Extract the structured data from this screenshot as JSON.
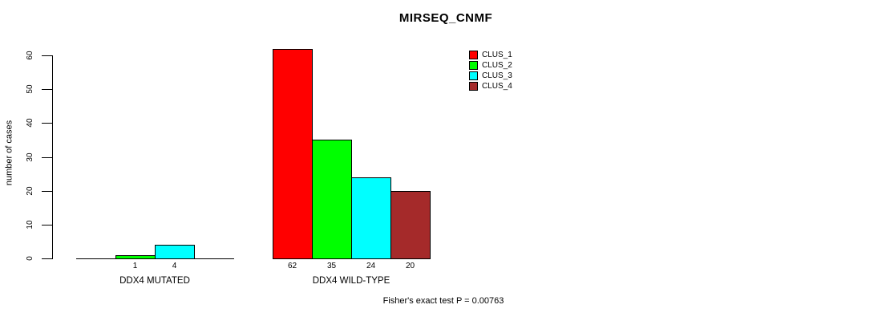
{
  "chart_data": {
    "type": "bar",
    "title": "MIRSEQ_CNMF",
    "ylabel": "number of cases",
    "xlabel": "",
    "yticks": [
      0,
      10,
      20,
      30,
      40,
      50,
      60
    ],
    "ylim": [
      0,
      62
    ],
    "grid": false,
    "legend_position": "top-right",
    "series": [
      {
        "name": "CLUS_1",
        "color": "#FF0000"
      },
      {
        "name": "CLUS_2",
        "color": "#00FF00"
      },
      {
        "name": "CLUS_3",
        "color": "#00FFFF"
      },
      {
        "name": "CLUS_4",
        "color": "#A52A2A"
      }
    ],
    "groups": [
      {
        "label": "DDX4 MUTATED",
        "values": [
          0,
          1,
          4,
          0
        ],
        "value_labels": [
          "",
          "1",
          "4",
          ""
        ]
      },
      {
        "label": "DDX4 WILD-TYPE",
        "values": [
          62,
          35,
          24,
          20
        ],
        "value_labels": [
          "62",
          "35",
          "24",
          "20"
        ]
      }
    ],
    "annotation": "Fisher's exact test P = 0.00763"
  }
}
